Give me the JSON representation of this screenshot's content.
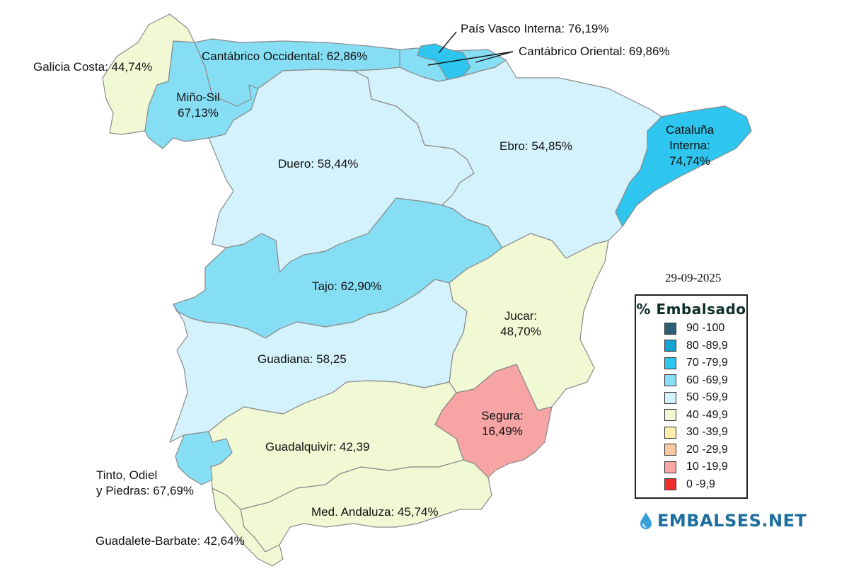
{
  "date": "29-09-2025",
  "legend": {
    "title": "% Embalsado",
    "items": [
      {
        "label": "90 -100",
        "color": "#2c5f73"
      },
      {
        "label": "80 -89,9",
        "color": "#13a4d2"
      },
      {
        "label": "70 -79,9",
        "color": "#2ec6ef"
      },
      {
        "label": "60 -69,9",
        "color": "#86def5"
      },
      {
        "label": "50 -59,9",
        "color": "#d4f2fb"
      },
      {
        "label": "40 -49,9",
        "color": "#f1f8d4"
      },
      {
        "label": "30 -39,9",
        "color": "#fdeeaa"
      },
      {
        "label": "20 -29,9",
        "color": "#fbc8a2"
      },
      {
        "label": "10 -19,9",
        "color": "#f6a4a4"
      },
      {
        "label": "0 -9,9",
        "color": "#f22b2b"
      }
    ]
  },
  "brand": "EMBALSES.NET",
  "basins": {
    "galicia_costa": {
      "label": "Galicia Costa: 44,74%",
      "value": 44.74
    },
    "mino_sil": {
      "line1": "Miño-Sil",
      "line2": "67,13%",
      "value": 67.13
    },
    "cantabrico_occidental": {
      "label": "Cantábrico Occidental: 62,86%",
      "value": 62.86
    },
    "pais_vasco": {
      "label": "País Vasco Interna: 76,19%",
      "value": 76.19
    },
    "cantabrico_oriental": {
      "label": "Cantábrico Oriental: 69,86%",
      "value": 69.86
    },
    "duero": {
      "label": "Duero: 58,44%",
      "value": 58.44
    },
    "ebro": {
      "label": "Ebro: 54,85%",
      "value": 54.85
    },
    "cataluna": {
      "line1": "Cataluña",
      "line2": "Interna:",
      "line3": "74,74%",
      "value": 74.74
    },
    "tajo": {
      "label": "Tajo: 62,90%",
      "value": 62.9
    },
    "jucar": {
      "line1": "Jucar:",
      "line2": "48,70%",
      "value": 48.7
    },
    "guadiana": {
      "label": "Guadiana: 58,25",
      "value": 58.25
    },
    "segura": {
      "line1": "Segura:",
      "line2": "16,49%",
      "value": 16.49
    },
    "guadalquivir": {
      "label": "Guadalquivir: 42,39",
      "value": 42.39
    },
    "tinto": {
      "line1": "Tinto, Odiel",
      "line2": "y Piedras: 67,69%",
      "value": 67.69
    },
    "med_andaluza": {
      "label": "Med. Andaluza: 45,74%",
      "value": 45.74
    },
    "guadalete": {
      "label": "Guadalete-Barbate: 42,64%",
      "value": 42.64
    }
  }
}
